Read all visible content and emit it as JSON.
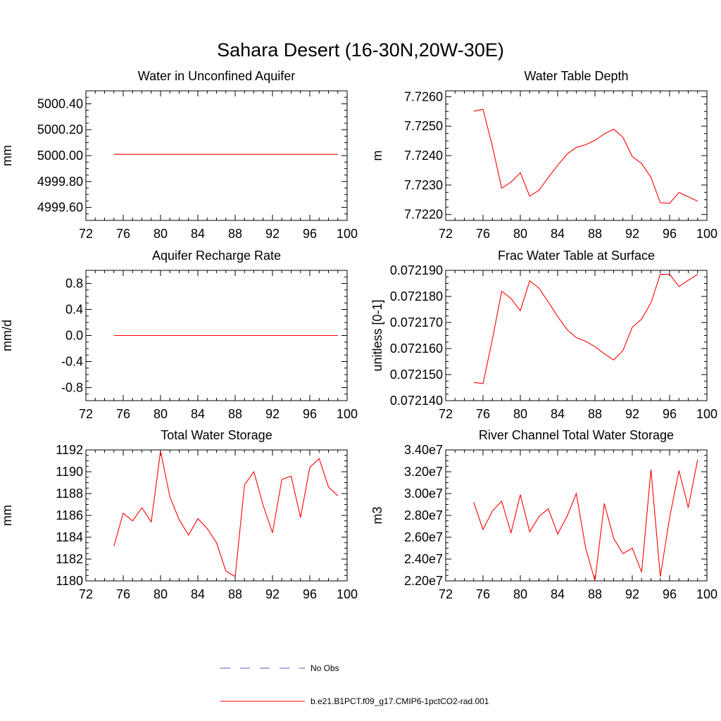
{
  "title": "Sahara Desert (16-30N,20W-30E)",
  "legend": [
    {
      "label": "No Obs",
      "style": "dashed",
      "color": "#5a5ab4"
    },
    {
      "label": "b.e21.B1PCT.f09_g17.CMIP6-1pctCO2-rad.001",
      "style": "solid",
      "color": "#ff0000"
    }
  ],
  "chart_data": [
    {
      "type": "line",
      "title": "Water in Unconfined Aquifer",
      "ylabel": "mm",
      "xlim": [
        72,
        100
      ],
      "ylim": [
        4999.5,
        5000.5
      ],
      "xticks": [
        72,
        76,
        80,
        84,
        88,
        92,
        96,
        100
      ],
      "xtick_labels": [
        "72",
        "76",
        "80",
        "84",
        "88",
        "92",
        "96",
        "100"
      ],
      "yticks": [
        4999.6,
        4999.8,
        5000.0,
        5000.2,
        5000.4
      ],
      "ytick_labels": [
        "4999.60",
        "4999.80",
        "5000.00",
        "5000.20",
        "5000.40"
      ],
      "x": [
        75,
        76,
        77,
        78,
        79,
        80,
        81,
        82,
        83,
        84,
        85,
        86,
        87,
        88,
        89,
        90,
        91,
        92,
        93,
        94,
        95,
        96,
        97,
        98,
        99
      ],
      "series": [
        {
          "color": "#ff0000",
          "values": [
            5000.01,
            5000.01,
            5000.01,
            5000.01,
            5000.01,
            5000.01,
            5000.01,
            5000.01,
            5000.01,
            5000.01,
            5000.01,
            5000.01,
            5000.01,
            5000.01,
            5000.01,
            5000.01,
            5000.01,
            5000.01,
            5000.01,
            5000.01,
            5000.01,
            5000.01,
            5000.01,
            5000.01,
            5000.01
          ]
        }
      ]
    },
    {
      "type": "line",
      "title": "Water Table Depth",
      "ylabel": "m",
      "xlim": [
        72,
        100
      ],
      "ylim": [
        7.7218,
        7.7262
      ],
      "xticks": [
        72,
        76,
        80,
        84,
        88,
        92,
        96,
        100
      ],
      "xtick_labels": [
        "72",
        "76",
        "80",
        "84",
        "88",
        "92",
        "96",
        "100"
      ],
      "yticks": [
        7.722,
        7.723,
        7.724,
        7.725,
        7.726
      ],
      "ytick_labels": [
        "7.7220",
        "7.7230",
        "7.7240",
        "7.7250",
        "7.7260"
      ],
      "x": [
        75,
        76,
        77,
        78,
        79,
        80,
        81,
        82,
        83,
        84,
        85,
        86,
        87,
        88,
        89,
        90,
        91,
        92,
        93,
        94,
        95,
        96,
        97,
        98,
        99
      ],
      "series": [
        {
          "color": "#ff0000",
          "values": [
            7.72551,
            7.72557,
            7.72432,
            7.72289,
            7.7231,
            7.72342,
            7.72262,
            7.72282,
            7.72326,
            7.72367,
            7.72405,
            7.72428,
            7.72437,
            7.72452,
            7.72474,
            7.7249,
            7.72462,
            7.72397,
            7.72373,
            7.72326,
            7.7224,
            7.72238,
            7.72275,
            7.7226,
            7.72245
          ]
        }
      ]
    },
    {
      "type": "line",
      "title": "Aquifer Recharge Rate",
      "ylabel": "mm/d",
      "xlim": [
        72,
        100
      ],
      "ylim": [
        -1.0,
        1.0
      ],
      "xticks": [
        72,
        76,
        80,
        84,
        88,
        92,
        96,
        100
      ],
      "xtick_labels": [
        "72",
        "76",
        "80",
        "84",
        "88",
        "92",
        "96",
        "100"
      ],
      "yticks": [
        -0.8,
        -0.4,
        0.0,
        0.4,
        0.8
      ],
      "ytick_labels": [
        "-0.8",
        "-0.4",
        "0.0",
        "0.4",
        "0.8"
      ],
      "x": [
        75,
        76,
        77,
        78,
        79,
        80,
        81,
        82,
        83,
        84,
        85,
        86,
        87,
        88,
        89,
        90,
        91,
        92,
        93,
        94,
        95,
        96,
        97,
        98,
        99
      ],
      "series": [
        {
          "color": "#ff0000",
          "values": [
            0,
            0,
            0,
            0,
            0,
            0,
            0,
            0,
            0,
            0,
            0,
            0,
            0,
            0,
            0,
            0,
            0,
            0,
            0,
            0,
            0,
            0,
            0,
            0,
            0
          ]
        }
      ]
    },
    {
      "type": "line",
      "title": "Frac Water Table at Surface",
      "ylabel": "unitless [0-1]",
      "xlim": [
        72,
        100
      ],
      "ylim": [
        0.07214,
        0.07219
      ],
      "xticks": [
        72,
        76,
        80,
        84,
        88,
        92,
        96,
        100
      ],
      "xtick_labels": [
        "72",
        "76",
        "80",
        "84",
        "88",
        "92",
        "96",
        "100"
      ],
      "yticks": [
        0.07214,
        0.07215,
        0.07216,
        0.07217,
        0.07218,
        0.07219
      ],
      "ytick_labels": [
        "0.072140",
        "0.072150",
        "0.072160",
        "0.072170",
        "0.072180",
        "0.072190"
      ],
      "x": [
        75,
        76,
        77,
        78,
        79,
        80,
        81,
        82,
        83,
        84,
        85,
        86,
        87,
        88,
        89,
        90,
        91,
        92,
        93,
        94,
        95,
        96,
        97,
        98,
        99
      ],
      "series": [
        {
          "color": "#ff0000",
          "values": [
            0.072147,
            0.0721465,
            0.0721635,
            0.072182,
            0.0721792,
            0.0721745,
            0.072186,
            0.0721832,
            0.0721778,
            0.0721723,
            0.0721673,
            0.0721642,
            0.0721628,
            0.0721607,
            0.072158,
            0.0721556,
            0.0721593,
            0.0721682,
            0.0721713,
            0.0721775,
            0.0721885,
            0.0721885,
            0.0721838,
            0.0721862,
            0.0721885
          ]
        }
      ]
    },
    {
      "type": "line",
      "title": "Total Water Storage",
      "ylabel": "mm",
      "xlim": [
        72,
        100
      ],
      "ylim": [
        1180,
        1192
      ],
      "xticks": [
        72,
        76,
        80,
        84,
        88,
        92,
        96,
        100
      ],
      "xtick_labels": [
        "72",
        "76",
        "80",
        "84",
        "88",
        "92",
        "96",
        "100"
      ],
      "yticks": [
        1180,
        1182,
        1184,
        1186,
        1188,
        1190,
        1192
      ],
      "ytick_labels": [
        "1180",
        "1182",
        "1184",
        "1186",
        "1188",
        "1190",
        "1192"
      ],
      "x": [
        75,
        76,
        77,
        78,
        79,
        80,
        81,
        82,
        83,
        84,
        85,
        86,
        87,
        88,
        89,
        90,
        91,
        92,
        93,
        94,
        95,
        96,
        97,
        98,
        99
      ],
      "series": [
        {
          "color": "#ff0000",
          "values": [
            1183.2,
            1186.2,
            1185.5,
            1186.7,
            1185.4,
            1191.9,
            1187.7,
            1185.6,
            1184.2,
            1185.7,
            1184.8,
            1183.5,
            1180.9,
            1180.4,
            1188.8,
            1190.0,
            1186.9,
            1184.4,
            1189.3,
            1189.6,
            1185.8,
            1190.4,
            1191.2,
            1188.6,
            1187.8
          ]
        }
      ]
    },
    {
      "type": "line",
      "title": "River Channel Total Water Storage",
      "ylabel": "m3",
      "xlim": [
        72,
        100
      ],
      "ylim": [
        22000000.0,
        34000000.0
      ],
      "xticks": [
        72,
        76,
        80,
        84,
        88,
        92,
        96,
        100
      ],
      "xtick_labels": [
        "72",
        "76",
        "80",
        "84",
        "88",
        "92",
        "96",
        "100"
      ],
      "yticks": [
        22000000.0,
        24000000.0,
        26000000.0,
        28000000.0,
        30000000.0,
        32000000.0,
        34000000.0
      ],
      "ytick_labels": [
        "2.20e7",
        "2.40e7",
        "2.60e7",
        "2.80e7",
        "3.00e7",
        "3.20e7",
        "3.40e7"
      ],
      "x": [
        75,
        76,
        77,
        78,
        79,
        80,
        81,
        82,
        83,
        84,
        85,
        86,
        87,
        88,
        89,
        90,
        91,
        92,
        93,
        94,
        95,
        96,
        97,
        98,
        99
      ],
      "series": [
        {
          "color": "#ff0000",
          "values": [
            29200000.0,
            26700000.0,
            28400000.0,
            29300000.0,
            26400000.0,
            29900000.0,
            26500000.0,
            27900000.0,
            28600000.0,
            26300000.0,
            27900000.0,
            30000000.0,
            25000000.0,
            22000000.0,
            29100000.0,
            25900000.0,
            24500000.0,
            25000000.0,
            22800000.0,
            32200000.0,
            22400000.0,
            27800000.0,
            32100000.0,
            28700000.0,
            33100000.0
          ]
        }
      ]
    }
  ]
}
